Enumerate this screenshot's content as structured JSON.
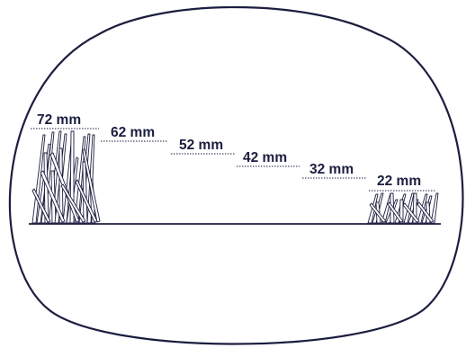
{
  "diagram": {
    "labels": [
      "72 mm",
      "62 mm",
      "52 mm",
      "42 mm",
      "32 mm",
      "22 mm"
    ],
    "colors": {
      "outline": "#1b1e3f",
      "text": "#1b1e3f",
      "background": "#ffffff"
    },
    "icons": {
      "tall_grass": "grass-tall-icon",
      "short_grass": "grass-short-icon"
    }
  }
}
